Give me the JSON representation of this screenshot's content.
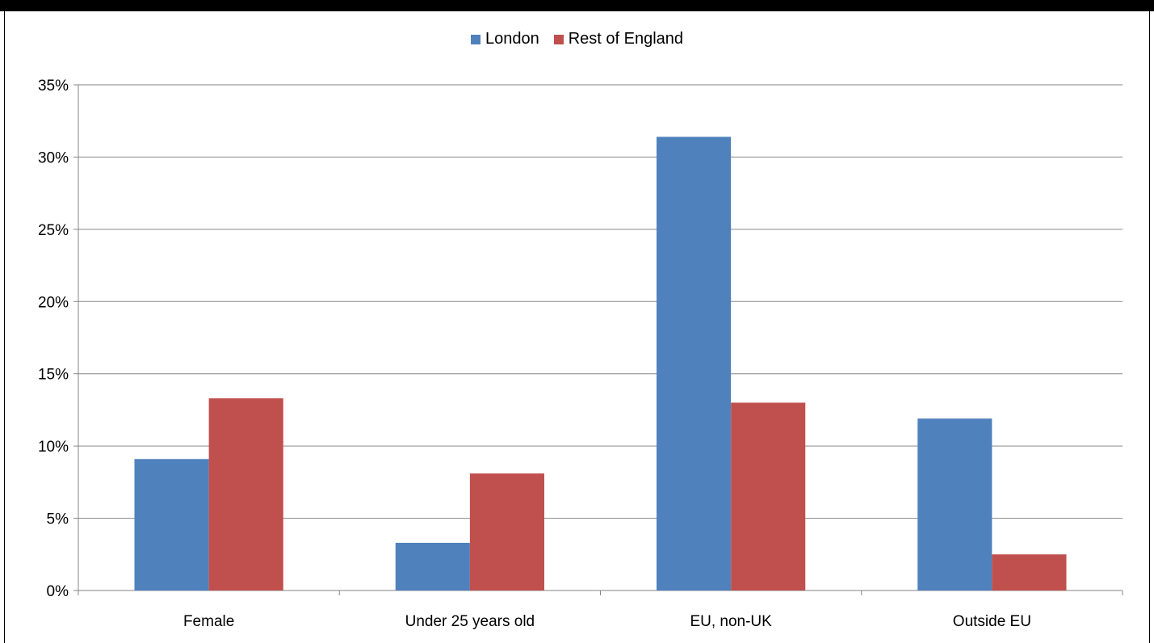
{
  "chart_data": {
    "type": "bar",
    "title": "",
    "categories": [
      "Female",
      "Under 25 years old",
      "EU, non-UK",
      "Outside EU"
    ],
    "series": [
      {
        "name": "London",
        "color": "#4f81bd",
        "values": [
          9.1,
          3.3,
          31.4,
          11.9
        ]
      },
      {
        "name": "Rest of England",
        "color": "#c0504d",
        "values": [
          13.3,
          8.1,
          13.0,
          2.5
        ]
      }
    ],
    "y_ticks": [
      "0%",
      "5%",
      "10%",
      "15%",
      "20%",
      "25%",
      "30%",
      "35%"
    ],
    "ylim": [
      0,
      35
    ],
    "xlabel": "",
    "ylabel": "",
    "grid": true,
    "legend_position": "top-center"
  }
}
